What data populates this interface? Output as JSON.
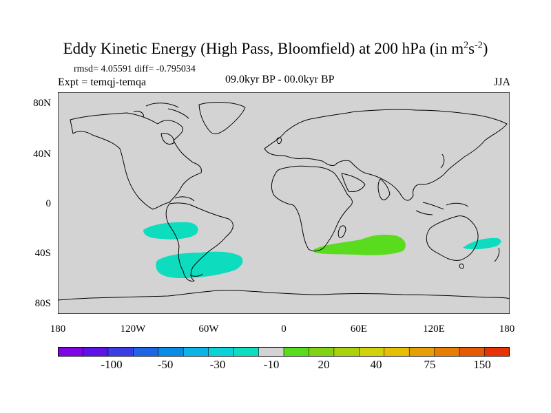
{
  "title": {
    "main": "Eddy Kinetic Energy (High Pass, Bloomfield) at 200 hPa (in m",
    "sup1": "2",
    "mid": "s",
    "sup2": "-2",
    "end": ")"
  },
  "stats": "rmsd= 4.05591  diff= -0.795034",
  "experiment": "Expt = temqj-temqa",
  "period": "09.0kyr BP - 00.0kyr BP",
  "season": "JJA",
  "map": {
    "projection": "cylindrical equidistant",
    "background_color": "#d3d3d3",
    "lat_labels": [
      "80N",
      "40N",
      "0",
      "40S",
      "80S"
    ],
    "lon_labels": [
      "180",
      "120W",
      "60W",
      "0",
      "60E",
      "120E",
      "180"
    ],
    "anomalies": [
      {
        "region": "Subtropical South Pacific",
        "level": "-30 to -10",
        "color": "#0ddcbe"
      },
      {
        "region": "South Atlantic / southern South America",
        "level": "-30 to -10",
        "color": "#0ddcbe"
      },
      {
        "region": "Southern Indian Ocean",
        "level": "10 to 20",
        "color": "#5adc1e"
      },
      {
        "region": "Tasman Sea",
        "level": "-30 to -10",
        "color": "#0ddcbe"
      }
    ]
  },
  "colorbar": {
    "colors": [
      "#7d05e6",
      "#5a14e6",
      "#3c3ce6",
      "#1e64e6",
      "#0a8ce6",
      "#0ab4e6",
      "#0ad2d7",
      "#0ddcbe",
      "#d3d3d3",
      "#5adc1e",
      "#82d214",
      "#aad20a",
      "#d2d20a",
      "#e6be05",
      "#e6a005",
      "#e67d05",
      "#e65a05",
      "#e63205"
    ],
    "labels": [
      "-100",
      "-50",
      "-30",
      "-10",
      "20",
      "40",
      "75",
      "150"
    ]
  }
}
